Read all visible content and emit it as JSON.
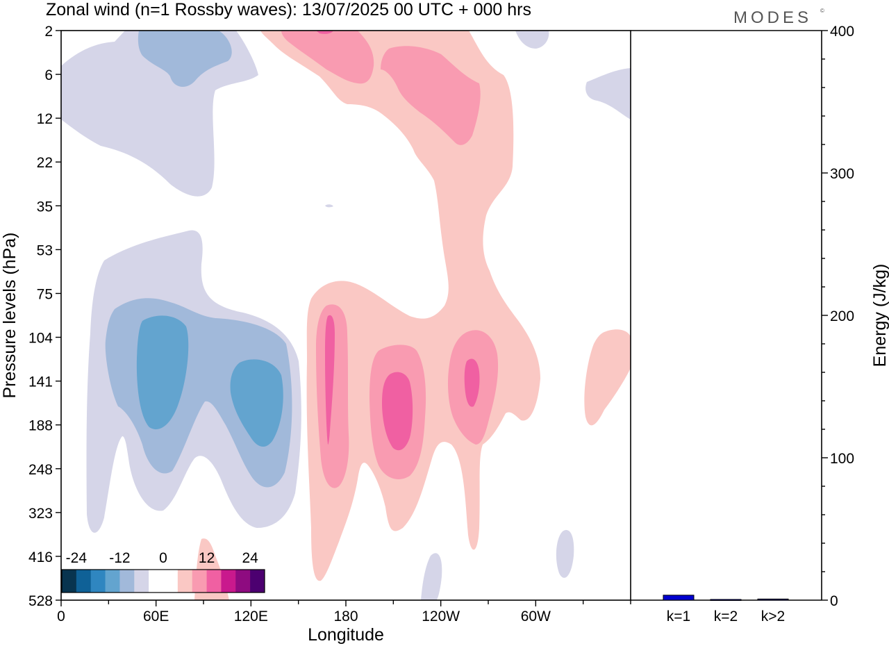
{
  "title": "Zonal wind (n=1 Rossby waves):  13/07/2025  00 UTC  + 000 hrs",
  "brand": "MODES",
  "brand_mark": "©",
  "chart_data": [
    {
      "type": "heatmap",
      "xlabel": "Longitude",
      "ylabel": "Pressure levels (hPa)",
      "x_ticks": [
        "0",
        "60E",
        "120E",
        "180",
        "120W",
        "60W"
      ],
      "x_tick_values": [
        0,
        60,
        120,
        180,
        240,
        300
      ],
      "xlim": [
        0,
        360
      ],
      "y_ticks": [
        "2",
        "6",
        "12",
        "22",
        "35",
        "53",
        "75",
        "104",
        "141",
        "188",
        "248",
        "323",
        "416",
        "528"
      ],
      "y_scale": "categorical pressure levels (top 2 hPa, bottom 528 hPa)",
      "colorbar": {
        "labels": [
          "-24",
          "-12",
          "0",
          "12",
          "24"
        ],
        "label_values": [
          -24,
          -12,
          0,
          12,
          24
        ],
        "colors": [
          "#08344f",
          "#0f6197",
          "#2f86c0",
          "#63a4cf",
          "#a1b9da",
          "#d5d5e8",
          "#ffffff",
          "#ffffff",
          "#fac8c4",
          "#f99bb1",
          "#f060a2",
          "#c9198d",
          "#8e0b80",
          "#4c0070"
        ],
        "placement": "lower-left"
      },
      "contour_regions": [
        {
          "sign": "negative",
          "min_level": -8,
          "lon_range": [
            0,
            100
          ],
          "p_range": [
            2,
            35
          ],
          "description_from_colors": "light lavender"
        },
        {
          "sign": "negative",
          "min_level": -12,
          "lon_range": [
            50,
            110
          ],
          "p_range": [
            2,
            6
          ]
        },
        {
          "sign": "negative",
          "min_level": -8,
          "lon_range": [
            10,
            150
          ],
          "p_range": [
            53,
            323
          ]
        },
        {
          "sign": "negative",
          "min_level": -12,
          "lon_range": [
            30,
            140
          ],
          "p_range": [
            75,
            323
          ]
        },
        {
          "sign": "negative",
          "min_level": -16,
          "lon_range": [
            50,
            80
          ],
          "p_range": [
            104,
            188
          ]
        },
        {
          "sign": "negative",
          "min_level": -16,
          "lon_range": [
            110,
            140
          ],
          "p_range": [
            115,
            200
          ]
        },
        {
          "sign": "positive",
          "min_level": 4,
          "lon_range": [
            130,
            360
          ],
          "p_range": [
            2,
            528
          ]
        },
        {
          "sign": "positive",
          "min_level": 8,
          "lon_range": [
            140,
            270
          ],
          "p_range": [
            2,
            22
          ]
        },
        {
          "sign": "positive",
          "min_level": 12,
          "lon_range": [
            200,
            225
          ],
          "p_range": [
            141,
            210
          ]
        },
        {
          "sign": "positive",
          "min_level": 12,
          "lon_range": [
            168,
            172
          ],
          "p_range": [
            104,
            200
          ]
        },
        {
          "sign": "positive",
          "min_level": 12,
          "lon_range": [
            250,
            258
          ],
          "p_range": [
            125,
            160
          ]
        }
      ]
    },
    {
      "type": "bar",
      "categories": [
        "k=1",
        "k=2",
        "k>2"
      ],
      "values": [
        3.5,
        0.5,
        0.8
      ],
      "ylabel": "Energy (J/kg)",
      "ylim": [
        0,
        400
      ],
      "y_ticks": [
        0,
        100,
        200,
        300,
        400
      ],
      "colors": {
        "k=1": "#0000d0",
        "k=2": "#000080",
        "k>2": "#000080"
      }
    }
  ],
  "colors": {
    "lavender": "#d5d5e8",
    "blue_light": "#a1b9da",
    "blue_mid": "#63a4cf",
    "pink_light": "#fac8c4",
    "pink_mid": "#f99bb1",
    "pink_dark": "#f060a2",
    "bar_blue": "#0000d0"
  }
}
